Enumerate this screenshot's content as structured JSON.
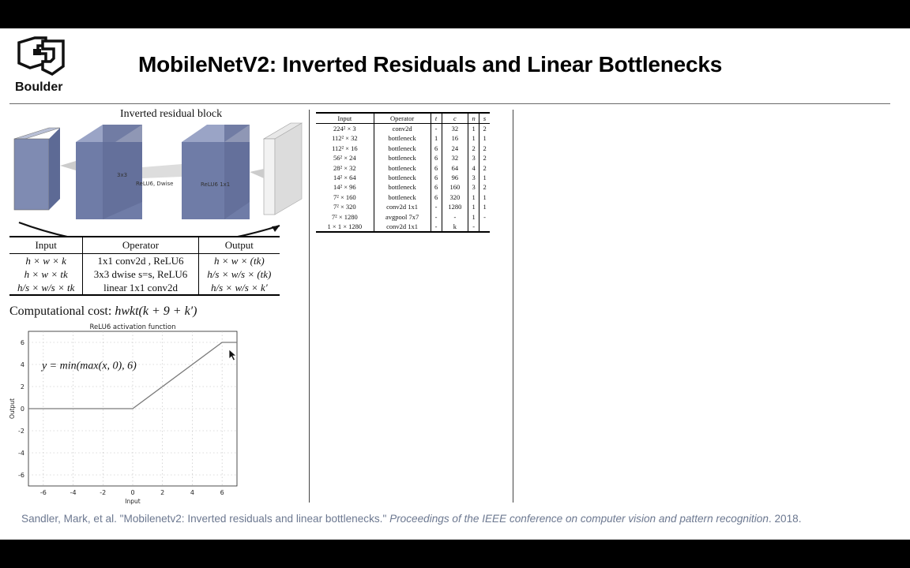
{
  "slide": {
    "logo": {
      "icon": "cu-logo-icon",
      "text": "Boulder"
    },
    "title": "MobileNetV2: Inverted Residuals and Linear Bottlenecks",
    "citation": {
      "authors": "Sandler, Mark, et al. ",
      "paper": "\"Mobilenetv2: Inverted residuals and linear bottlenecks.\" ",
      "venue": "Proceedings of the IEEE conference on computer vision and pattern recognition",
      "year": ". 2018."
    }
  },
  "block_diagram": {
    "title": "Inverted residual block",
    "labels": {
      "conv3": "3x3",
      "relu_dwise": "ReLU6, Dwise",
      "relu_conv": "ReLU6  1x1",
      "plus": "+"
    }
  },
  "operator_table": {
    "headers": [
      "Input",
      "Operator",
      "Output"
    ],
    "rows": [
      [
        "h × w × k",
        "1x1 conv2d , ReLU6",
        "h × w × (tk)"
      ],
      [
        "h × w × tk",
        "3x3 dwise s=s, ReLU6",
        "h/s × w/s × (tk)"
      ],
      [
        "h/s × w/s × tk",
        "linear 1x1 conv2d",
        "h/s × w/s × k′"
      ]
    ]
  },
  "cost": {
    "label": "Computational cost: ",
    "formula": "hwkt(k + 9 + k′)"
  },
  "chart_data": {
    "type": "line",
    "title": "ReLU6 activation function",
    "xlabel": "Input",
    "ylabel": "Output",
    "annotation": "y = min(max(x, 0), 6)",
    "xlim": [
      -7,
      7
    ],
    "ylim": [
      -7,
      7
    ],
    "xticks": [
      -6,
      -4,
      -2,
      0,
      2,
      4,
      6
    ],
    "yticks": [
      -6,
      -4,
      -2,
      0,
      2,
      4,
      6
    ],
    "x": [
      -7,
      0,
      6,
      7
    ],
    "series": [
      {
        "values": [
          0,
          0,
          6,
          6
        ]
      }
    ],
    "grid": true,
    "line_color": "#7a7a7a"
  },
  "arch_table": {
    "headers": [
      "Input",
      "Operator",
      "t",
      "c",
      "n",
      "s"
    ],
    "rows": [
      [
        "224² × 3",
        "conv2d",
        "-",
        "32",
        "1",
        "2"
      ],
      [
        "112² × 32",
        "bottleneck",
        "1",
        "16",
        "1",
        "1"
      ],
      [
        "112² × 16",
        "bottleneck",
        "6",
        "24",
        "2",
        "2"
      ],
      [
        "56² × 24",
        "bottleneck",
        "6",
        "32",
        "3",
        "2"
      ],
      [
        "28² × 32",
        "bottleneck",
        "6",
        "64",
        "4",
        "2"
      ],
      [
        "14² × 64",
        "bottleneck",
        "6",
        "96",
        "3",
        "1"
      ],
      [
        "14² × 96",
        "bottleneck",
        "6",
        "160",
        "3",
        "2"
      ],
      [
        "7² × 160",
        "bottleneck",
        "6",
        "320",
        "1",
        "1"
      ],
      [
        "7² × 320",
        "conv2d 1x1",
        "-",
        "1280",
        "1",
        "1"
      ],
      [
        "7² × 1280",
        "avgpool 7x7",
        "-",
        "-",
        "1",
        "-"
      ],
      [
        "1 × 1 × 1280",
        "conv2d 1x1",
        "-",
        "k",
        "-",
        ""
      ]
    ]
  }
}
